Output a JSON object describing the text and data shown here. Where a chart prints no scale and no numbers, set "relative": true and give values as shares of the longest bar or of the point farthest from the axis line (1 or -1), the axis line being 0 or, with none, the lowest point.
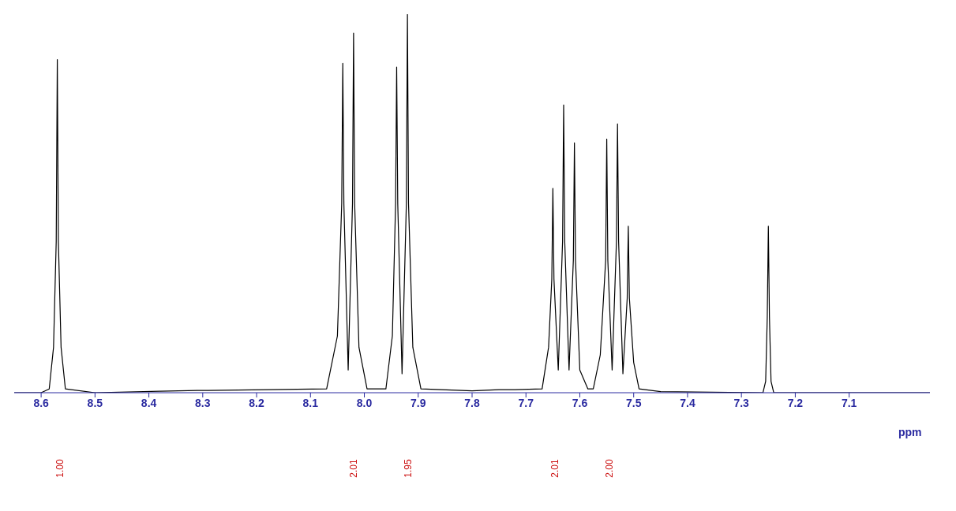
{
  "chart_data": {
    "type": "line",
    "relative": true,
    "xlabel": "ppm",
    "xlim": [
      8.65,
      6.95
    ],
    "xticks": [
      8.6,
      8.5,
      8.4,
      8.3,
      8.2,
      8.1,
      {
        "value": 8,
        "label": "8.0"
      },
      7.9,
      7.8,
      7.7,
      7.6,
      7.5,
      7.4,
      7.3,
      7.2,
      7.1
    ],
    "marker": "none",
    "line_style": "solid",
    "series": [
      {
        "color": "#000000",
        "x": [
          8.65,
          8.6,
          8.585,
          8.577,
          8.572,
          8.57,
          8.568,
          8.563,
          8.555,
          8.5,
          8.38,
          8.31,
          8.29,
          8.07,
          8.05,
          8.042,
          8.04,
          8.038,
          8.03,
          8.022,
          8.02,
          8.018,
          8.01,
          7.995,
          7.96,
          7.948,
          7.942,
          7.94,
          7.938,
          7.93,
          7.922,
          7.92,
          7.918,
          7.91,
          7.895,
          7.8,
          7.75,
          7.72,
          7.67,
          7.658,
          7.652,
          7.65,
          7.648,
          7.64,
          7.632,
          7.63,
          7.628,
          7.62,
          7.612,
          7.61,
          7.608,
          7.6,
          7.585,
          7.575,
          7.562,
          7.552,
          7.55,
          7.548,
          7.54,
          7.532,
          7.53,
          7.528,
          7.52,
          7.512,
          7.51,
          7.508,
          7.5,
          7.49,
          7.45,
          7.26,
          7.255,
          7.252,
          7.25,
          7.248,
          7.245,
          7.24,
          6.95
        ],
        "values": [
          0,
          0,
          0.01,
          0.12,
          0.4,
          0.88,
          0.4,
          0.12,
          0.01,
          0,
          0.004,
          0.006,
          0.006,
          0.01,
          0.15,
          0.5,
          0.87,
          0.5,
          0.06,
          0.5,
          0.95,
          0.5,
          0.12,
          0.01,
          0.01,
          0.15,
          0.5,
          0.86,
          0.5,
          0.05,
          0.5,
          1.0,
          0.5,
          0.12,
          0.01,
          0.005,
          0.008,
          0.008,
          0.01,
          0.12,
          0.3,
          0.54,
          0.3,
          0.06,
          0.4,
          0.76,
          0.4,
          0.06,
          0.35,
          0.66,
          0.35,
          0.06,
          0.01,
          0.01,
          0.1,
          0.35,
          0.67,
          0.35,
          0.06,
          0.4,
          0.71,
          0.4,
          0.05,
          0.25,
          0.44,
          0.25,
          0.08,
          0.01,
          0.003,
          0,
          0.03,
          0.2,
          0.44,
          0.2,
          0.03,
          0,
          0
        ]
      }
    ],
    "annotations": [
      "1.00",
      "2.01",
      "1.95",
      "2.01",
      "2.00"
    ]
  }
}
